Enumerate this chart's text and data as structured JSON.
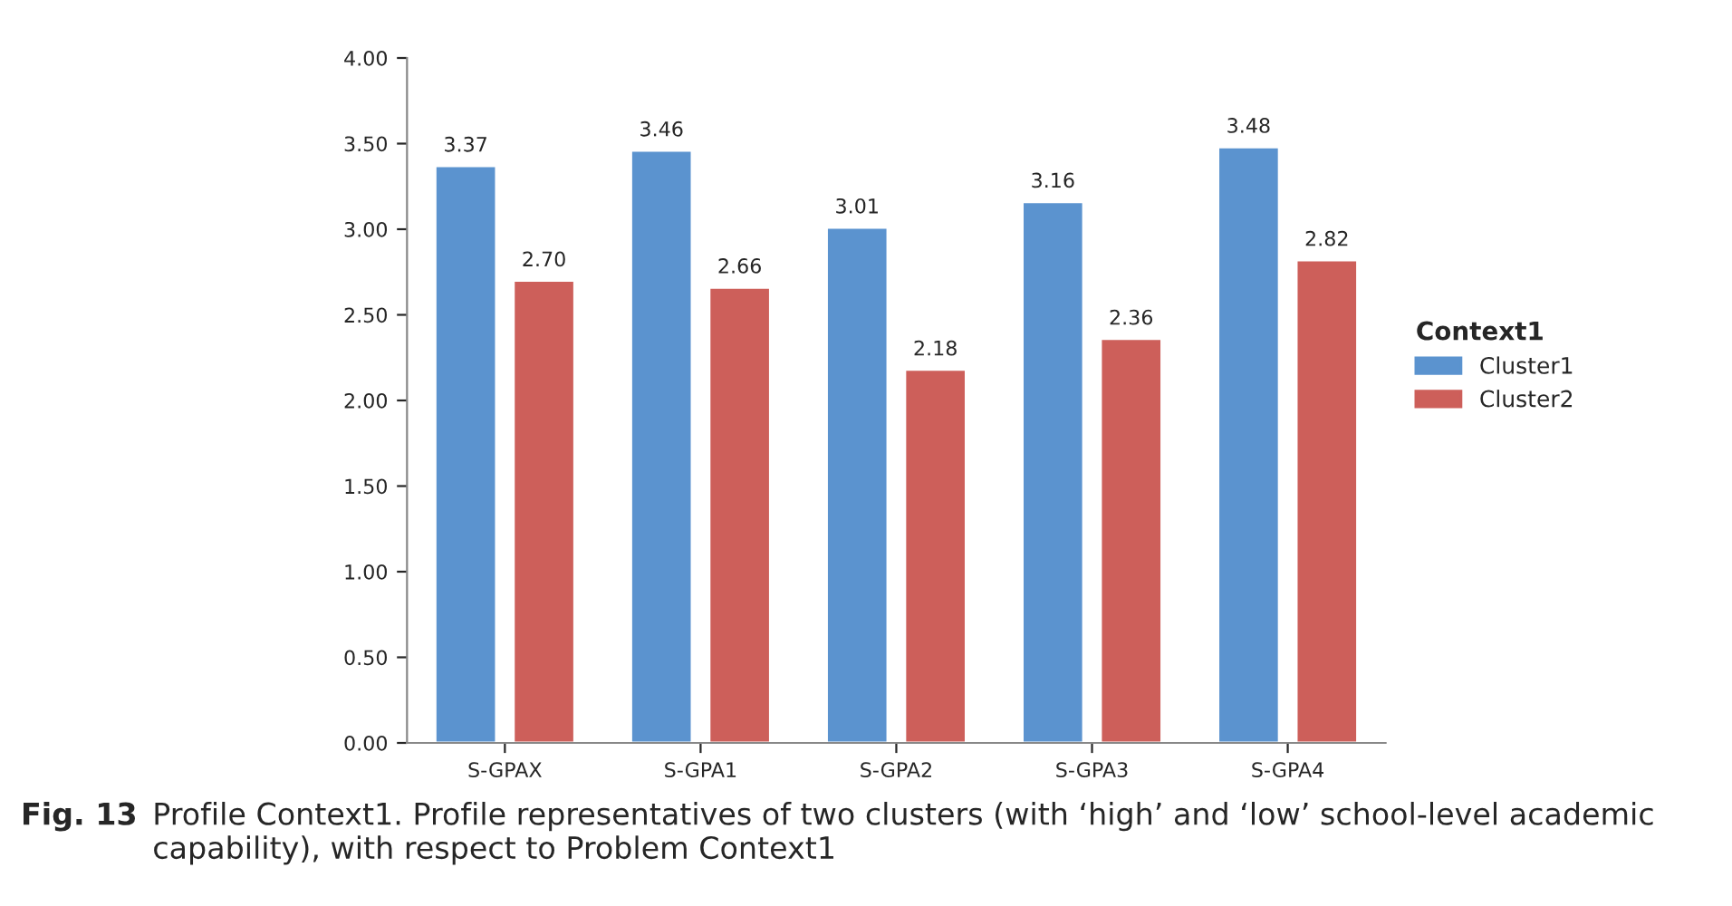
{
  "chart_data": {
    "type": "bar",
    "categories": [
      "S-GPAX",
      "S-GPA1",
      "S-GPA2",
      "S-GPA3",
      "S-GPA4"
    ],
    "series": [
      {
        "name": "Cluster1",
        "color": "#5b93cf",
        "values": [
          3.37,
          3.46,
          3.01,
          3.16,
          3.48
        ],
        "value_labels": [
          "3.37",
          "3.46",
          "3.01",
          "3.16",
          "3.48"
        ]
      },
      {
        "name": "Cluster2",
        "color": "#cd5f5a",
        "values": [
          2.7,
          2.66,
          2.18,
          2.36,
          2.82
        ],
        "value_labels": [
          "2.70",
          "2.66",
          "2.18",
          "2.36",
          "2.82"
        ]
      }
    ],
    "legend_title": "Context1",
    "legend": "right",
    "grid": false,
    "ylim": [
      0,
      4
    ],
    "yticks": [
      {
        "value": 0,
        "label": "0.00"
      },
      {
        "value": 0.5,
        "label": "0.50"
      },
      {
        "value": 1,
        "label": "1.00"
      },
      {
        "value": 1.5,
        "label": "1.50"
      },
      {
        "value": 2,
        "label": "2.00"
      },
      {
        "value": 2.5,
        "label": "2.50"
      },
      {
        "value": 3,
        "label": "3.00"
      },
      {
        "value": 3.5,
        "label": "3.50"
      },
      {
        "value": 4,
        "label": "4.00"
      }
    ],
    "annotations": [
      "Fig. 13",
      "Profile Context1. Profile representatives of two clusters (with ‘high’ and ‘low’ school-level academic capability), with respect to Problem Context1"
    ]
  }
}
